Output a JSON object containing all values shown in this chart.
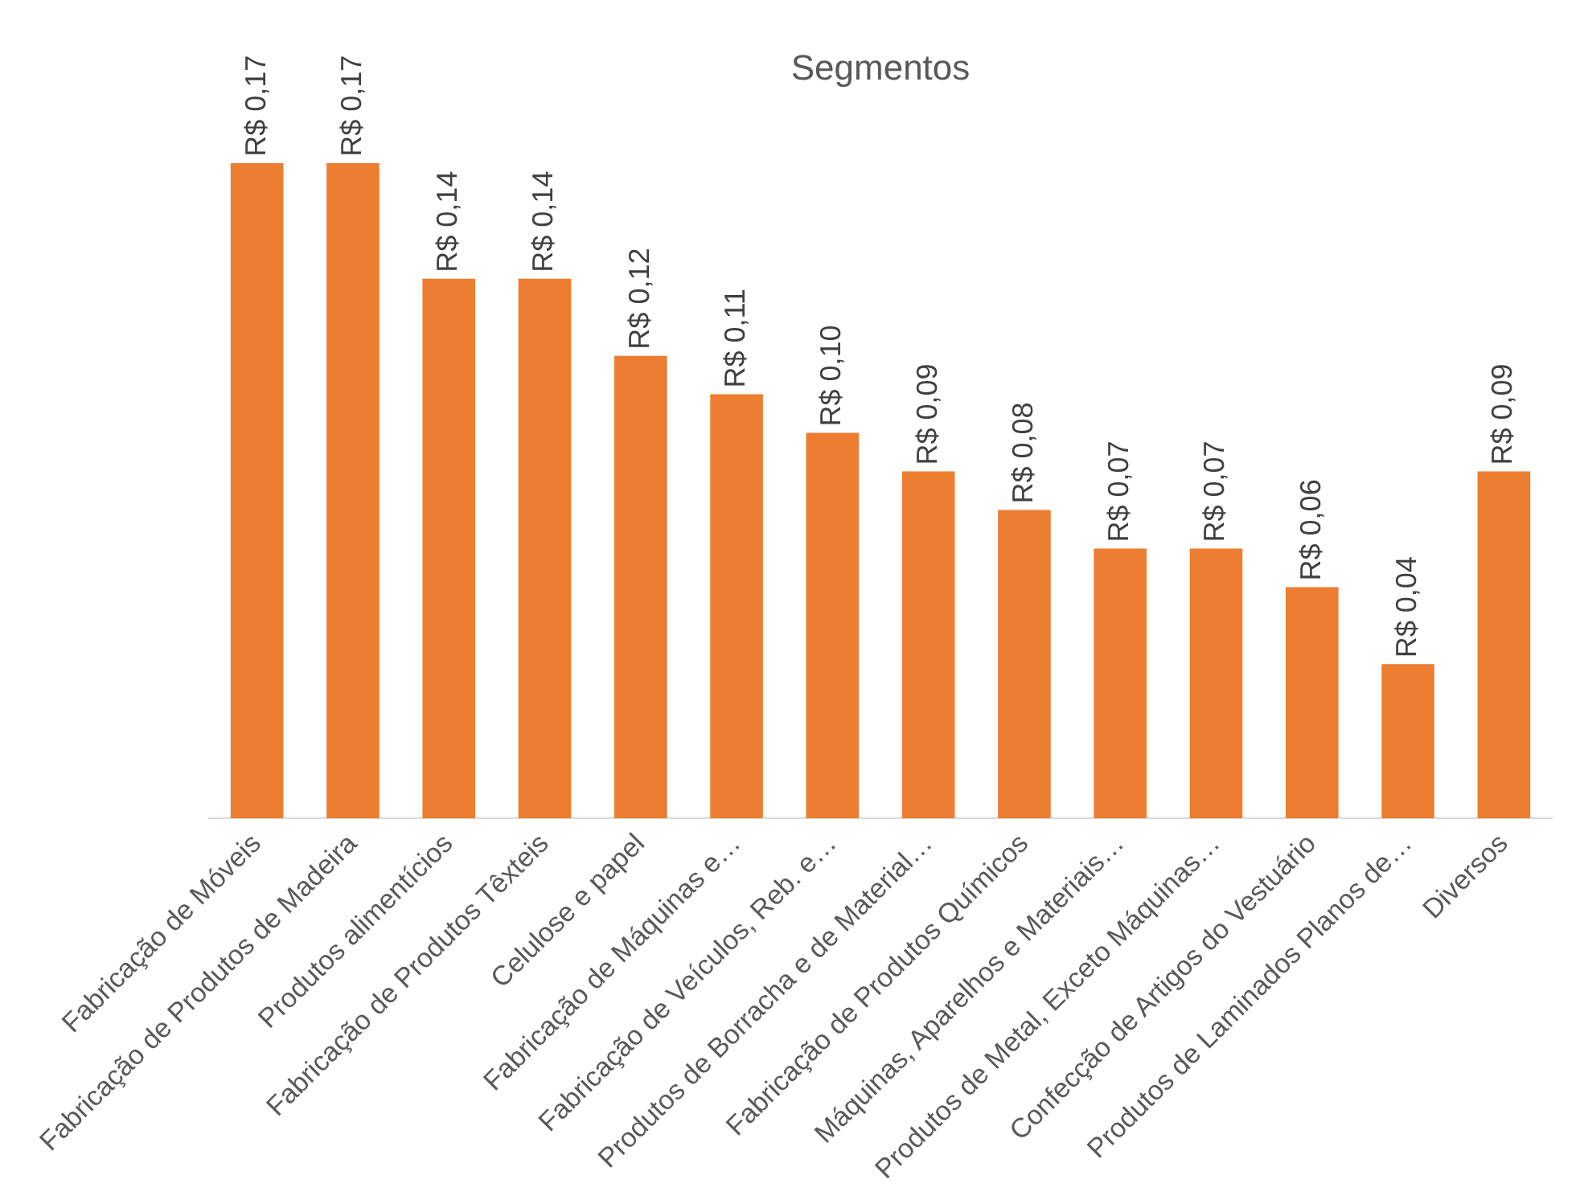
{
  "chart_data": {
    "type": "bar",
    "title": "Segmentos",
    "categories": [
      "Fabricação de Móveis",
      "Fabricação de Produtos de Madeira",
      "Produtos alimentícios",
      "Fabricação de Produtos Têxteis",
      "Celulose e papel",
      "Fabricação de Máquinas e…",
      "Fabricação de Veículos, Reb. e…",
      "Produtos de Borracha e de Material…",
      "Fabricação de Produtos Químicos",
      "Máquinas, Aparelhos e Materiais…",
      "Produtos de Metal, Exceto Máquinas…",
      "Confecção de Artigos do Vestuário",
      "Produtos de Laminados Planos de…",
      "Diversos"
    ],
    "values": [
      0.17,
      0.17,
      0.14,
      0.14,
      0.12,
      0.11,
      0.1,
      0.09,
      0.08,
      0.07,
      0.07,
      0.06,
      0.04,
      0.09
    ],
    "value_labels": [
      "R$ 0,17",
      "R$ 0,17",
      "R$ 0,14",
      "R$ 0,14",
      "R$ 0,12",
      "R$ 0,11",
      "R$ 0,10",
      "R$ 0,09",
      "R$ 0,08",
      "R$ 0,07",
      "R$ 0,07",
      "R$ 0,06",
      "R$ 0,04",
      "R$ 0,09"
    ],
    "color": "#ed7d31",
    "tick_labels": "x",
    "grid": false,
    "legend": false
  }
}
